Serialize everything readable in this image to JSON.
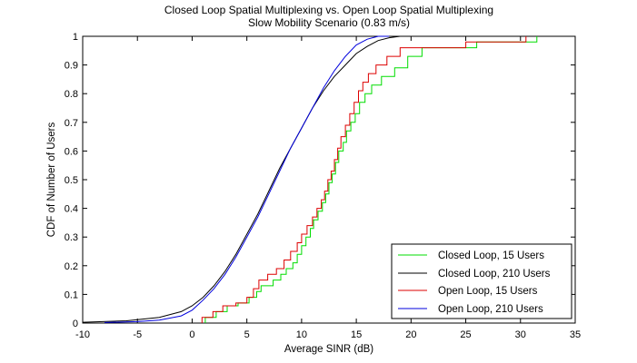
{
  "chart_data": {
    "type": "line",
    "title": [
      "Closed Loop Spatial Multiplexing vs. Open Loop Spatial Multiplexing",
      "Slow Mobility Scenario (0.83 m/s)"
    ],
    "xlabel": "Average SINR (dB)",
    "ylabel": "CDF of Number of Users",
    "xlim": [
      -10,
      35
    ],
    "ylim": [
      0,
      1
    ],
    "xticks": [
      -10,
      -5,
      0,
      5,
      10,
      15,
      20,
      25,
      30,
      35
    ],
    "yticks": [
      0,
      0.1,
      0.2,
      0.3,
      0.4,
      0.5,
      0.6,
      0.7,
      0.8,
      0.9,
      1
    ],
    "ytick_labels": [
      "0",
      "0.1",
      "0.2",
      "0.3",
      "0.4",
      "0.5",
      "0.6",
      "0.7",
      "0.8",
      "0.9",
      "1"
    ],
    "grid": false,
    "legend_position": "bottom-right",
    "series": [
      {
        "name": "Closed Loop, 15 Users",
        "color": "#00dd00",
        "step": true,
        "points": [
          [
            1.2,
            0
          ],
          [
            1.2,
            0.02
          ],
          [
            2.2,
            0.02
          ],
          [
            2.2,
            0.04
          ],
          [
            3.2,
            0.04
          ],
          [
            3.2,
            0.06
          ],
          [
            4.2,
            0.06
          ],
          [
            4.2,
            0.07
          ],
          [
            5.2,
            0.07
          ],
          [
            5.2,
            0.09
          ],
          [
            5.9,
            0.09
          ],
          [
            5.9,
            0.11
          ],
          [
            6.3,
            0.11
          ],
          [
            6.3,
            0.13
          ],
          [
            7.4,
            0.13
          ],
          [
            7.4,
            0.15
          ],
          [
            8.1,
            0.15
          ],
          [
            8.1,
            0.17
          ],
          [
            8.6,
            0.17
          ],
          [
            8.6,
            0.19
          ],
          [
            9.2,
            0.19
          ],
          [
            9.2,
            0.21
          ],
          [
            9.6,
            0.21
          ],
          [
            9.6,
            0.24
          ],
          [
            10,
            0.24
          ],
          [
            10,
            0.27
          ],
          [
            10.4,
            0.27
          ],
          [
            10.4,
            0.3
          ],
          [
            10.8,
            0.3
          ],
          [
            10.8,
            0.33
          ],
          [
            11.1,
            0.33
          ],
          [
            11.1,
            0.36
          ],
          [
            11.5,
            0.36
          ],
          [
            11.5,
            0.39
          ],
          [
            11.9,
            0.39
          ],
          [
            11.9,
            0.42
          ],
          [
            12.2,
            0.42
          ],
          [
            12.2,
            0.45
          ],
          [
            12.5,
            0.45
          ],
          [
            12.5,
            0.49
          ],
          [
            12.8,
            0.49
          ],
          [
            12.8,
            0.52
          ],
          [
            13.1,
            0.52
          ],
          [
            13.1,
            0.56
          ],
          [
            13.4,
            0.56
          ],
          [
            13.4,
            0.6
          ],
          [
            13.8,
            0.6
          ],
          [
            13.8,
            0.63
          ],
          [
            14.1,
            0.63
          ],
          [
            14.1,
            0.67
          ],
          [
            14.5,
            0.67
          ],
          [
            14.5,
            0.7
          ],
          [
            14.9,
            0.7
          ],
          [
            14.9,
            0.73
          ],
          [
            15.3,
            0.73
          ],
          [
            15.3,
            0.77
          ],
          [
            15.8,
            0.77
          ],
          [
            15.8,
            0.8
          ],
          [
            16.4,
            0.8
          ],
          [
            16.4,
            0.83
          ],
          [
            17.3,
            0.83
          ],
          [
            17.3,
            0.86
          ],
          [
            18.5,
            0.86
          ],
          [
            18.5,
            0.89
          ],
          [
            19.7,
            0.89
          ],
          [
            19.7,
            0.93
          ],
          [
            21,
            0.93
          ],
          [
            21,
            0.96
          ],
          [
            26,
            0.96
          ],
          [
            26,
            0.98
          ],
          [
            31.5,
            0.98
          ],
          [
            31.5,
            1
          ]
        ]
      },
      {
        "name": "Closed Loop, 210 Users",
        "color": "#000000",
        "step": false,
        "points": [
          [
            -10,
            0.003
          ],
          [
            -6,
            0.008
          ],
          [
            -3,
            0.02
          ],
          [
            -1,
            0.04
          ],
          [
            0,
            0.06
          ],
          [
            1,
            0.09
          ],
          [
            2,
            0.13
          ],
          [
            3,
            0.18
          ],
          [
            4,
            0.24
          ],
          [
            5,
            0.31
          ],
          [
            6,
            0.38
          ],
          [
            7,
            0.46
          ],
          [
            8,
            0.54
          ],
          [
            9,
            0.61
          ],
          [
            10,
            0.68
          ],
          [
            11,
            0.75
          ],
          [
            12,
            0.81
          ],
          [
            13,
            0.86
          ],
          [
            14,
            0.9
          ],
          [
            15,
            0.94
          ],
          [
            16,
            0.965
          ],
          [
            17,
            0.985
          ],
          [
            18,
            0.995
          ],
          [
            19,
            1
          ]
        ]
      },
      {
        "name": "Open Loop, 15 Users",
        "color": "#dd0000",
        "step": true,
        "points": [
          [
            0.9,
            0
          ],
          [
            0.9,
            0.02
          ],
          [
            1.9,
            0.02
          ],
          [
            1.9,
            0.04
          ],
          [
            2.8,
            0.04
          ],
          [
            2.8,
            0.06
          ],
          [
            4,
            0.06
          ],
          [
            4,
            0.07
          ],
          [
            5,
            0.07
          ],
          [
            5,
            0.09
          ],
          [
            5.6,
            0.09
          ],
          [
            5.6,
            0.12
          ],
          [
            6.1,
            0.12
          ],
          [
            6.1,
            0.15
          ],
          [
            6.9,
            0.15
          ],
          [
            6.9,
            0.17
          ],
          [
            7.7,
            0.17
          ],
          [
            7.7,
            0.19
          ],
          [
            8.4,
            0.19
          ],
          [
            8.4,
            0.22
          ],
          [
            9,
            0.22
          ],
          [
            9,
            0.25
          ],
          [
            9.6,
            0.25
          ],
          [
            9.6,
            0.28
          ],
          [
            10,
            0.28
          ],
          [
            10,
            0.31
          ],
          [
            10.5,
            0.31
          ],
          [
            10.5,
            0.34
          ],
          [
            11,
            0.34
          ],
          [
            11,
            0.37
          ],
          [
            11.4,
            0.37
          ],
          [
            11.4,
            0.4
          ],
          [
            11.8,
            0.4
          ],
          [
            11.8,
            0.43
          ],
          [
            12.1,
            0.43
          ],
          [
            12.1,
            0.46
          ],
          [
            12.4,
            0.46
          ],
          [
            12.4,
            0.5
          ],
          [
            12.7,
            0.5
          ],
          [
            12.7,
            0.53
          ],
          [
            13,
            0.53
          ],
          [
            13,
            0.57
          ],
          [
            13.3,
            0.57
          ],
          [
            13.3,
            0.61
          ],
          [
            13.6,
            0.61
          ],
          [
            13.6,
            0.65
          ],
          [
            14,
            0.65
          ],
          [
            14,
            0.69
          ],
          [
            14.4,
            0.69
          ],
          [
            14.4,
            0.73
          ],
          [
            14.8,
            0.73
          ],
          [
            14.8,
            0.77
          ],
          [
            15.2,
            0.77
          ],
          [
            15.2,
            0.81
          ],
          [
            15.6,
            0.81
          ],
          [
            15.6,
            0.84
          ],
          [
            16.1,
            0.84
          ],
          [
            16.1,
            0.87
          ],
          [
            16.8,
            0.87
          ],
          [
            16.8,
            0.9
          ],
          [
            17.8,
            0.9
          ],
          [
            17.8,
            0.93
          ],
          [
            19,
            0.93
          ],
          [
            19,
            0.96
          ],
          [
            25,
            0.96
          ],
          [
            25,
            0.98
          ],
          [
            30.5,
            0.98
          ],
          [
            30.5,
            1
          ]
        ]
      },
      {
        "name": "Open Loop, 210 Users",
        "color": "#0000dd",
        "step": false,
        "points": [
          [
            -8,
            0.002
          ],
          [
            -5,
            0.005
          ],
          [
            -3,
            0.01
          ],
          [
            -1,
            0.025
          ],
          [
            0,
            0.045
          ],
          [
            1,
            0.08
          ],
          [
            2,
            0.12
          ],
          [
            3,
            0.17
          ],
          [
            4,
            0.23
          ],
          [
            5,
            0.3
          ],
          [
            6,
            0.37
          ],
          [
            7,
            0.45
          ],
          [
            8,
            0.53
          ],
          [
            9,
            0.61
          ],
          [
            10,
            0.68
          ],
          [
            11,
            0.75
          ],
          [
            12,
            0.82
          ],
          [
            13,
            0.88
          ],
          [
            14,
            0.93
          ],
          [
            15,
            0.97
          ],
          [
            16,
            0.99
          ],
          [
            17,
            1
          ],
          [
            18,
            1
          ]
        ]
      }
    ]
  }
}
